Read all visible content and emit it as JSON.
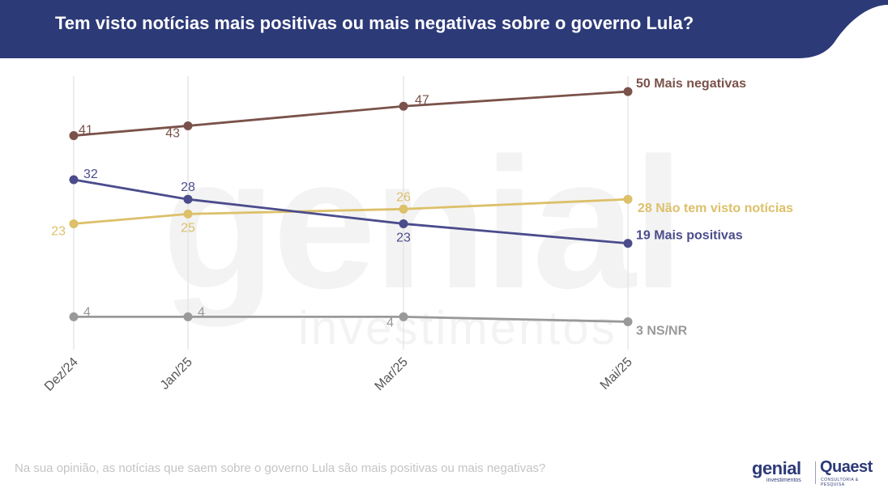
{
  "header": {
    "title": "Tem visto notícias mais positivas ou mais negativas sobre o governo Lula?",
    "band_color": "#2d3a78"
  },
  "watermark": {
    "main": "genial",
    "sub": "investimentos"
  },
  "chart_data": {
    "type": "line",
    "categories": [
      "Dez/24",
      "Jan/25",
      "Mar/25",
      "Mai/25"
    ],
    "ylim": [
      0,
      55
    ],
    "grid": "vertical",
    "series": [
      {
        "name": "Mais negativas",
        "values": [
          41,
          43,
          47,
          50
        ],
        "color": "#7a524a",
        "end_label": "50 Mais negativas",
        "point_labels": [
          "41",
          "43",
          "47"
        ]
      },
      {
        "name": "Não tem visto notícias",
        "values": [
          23,
          25,
          26,
          28
        ],
        "color": "#dcc06a",
        "end_label": "28 Não tem visto notícias",
        "point_labels": [
          "23",
          "25",
          "26"
        ]
      },
      {
        "name": "Mais positivas",
        "values": [
          32,
          28,
          23,
          19
        ],
        "color": "#4b4c8c",
        "end_label": "19 Mais positivas",
        "point_labels": [
          "32",
          "28",
          "23"
        ]
      },
      {
        "name": "NS/NR",
        "values": [
          4,
          4,
          4,
          3
        ],
        "color": "#999999",
        "end_label": "3 NS/NR",
        "point_labels": [
          "4",
          "4",
          "4"
        ]
      }
    ]
  },
  "footnote": "Na sua opinião, as notícias que saem sobre o governo Lula são mais positivas ou mais negativas?",
  "logos": {
    "genial": "genial",
    "genial_sub": "investimentos",
    "quaest": "Quaest",
    "quaest_sub": "CONSULTORIA & PESQUISA"
  }
}
